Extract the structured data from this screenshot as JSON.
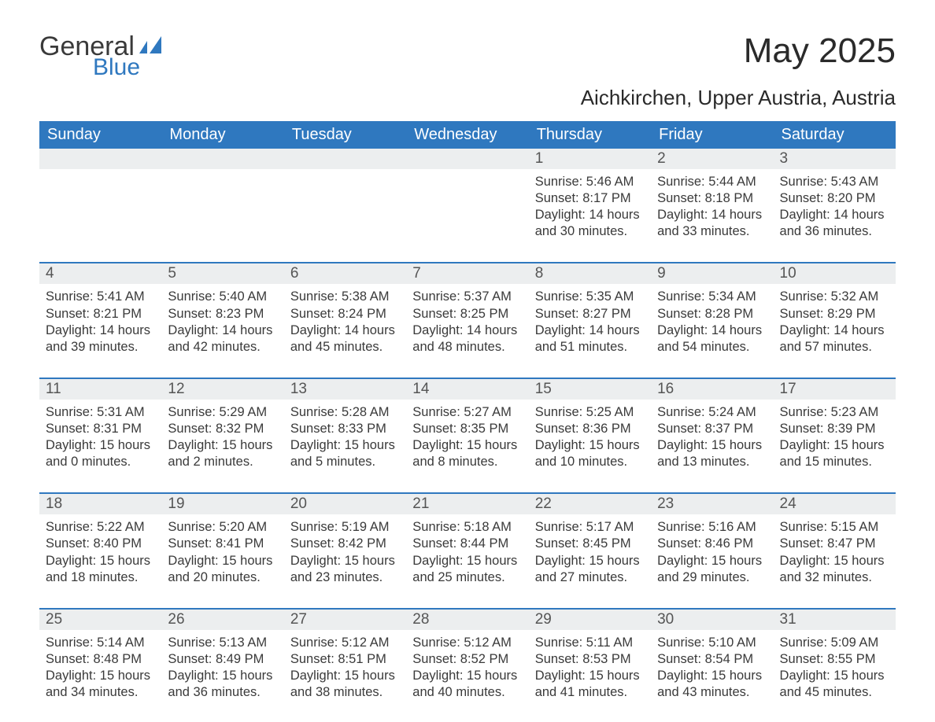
{
  "brand": {
    "part1": "General",
    "part2": "Blue",
    "color_primary": "#2f78bf",
    "color_text": "#3a3a3a"
  },
  "title": "May 2025",
  "location": "Aichkirchen, Upper Austria, Austria",
  "style": {
    "header_bg": "#2f78bf",
    "header_fg": "#ffffff",
    "daynum_bg": "#eceeef",
    "row_border": "#2f78bf",
    "body_bg": "#ffffff",
    "font_family": "Arial",
    "title_fontsize": 44,
    "location_fontsize": 26,
    "weekday_fontsize": 20,
    "daynum_fontsize": 19,
    "cell_fontsize": 16.5
  },
  "weekdays": [
    "Sunday",
    "Monday",
    "Tuesday",
    "Wednesday",
    "Thursday",
    "Friday",
    "Saturday"
  ],
  "weeks": [
    [
      null,
      null,
      null,
      null,
      {
        "n": "1",
        "sunrise": "5:46 AM",
        "sunset": "8:17 PM",
        "daylight": "14 hours and 30 minutes."
      },
      {
        "n": "2",
        "sunrise": "5:44 AM",
        "sunset": "8:18 PM",
        "daylight": "14 hours and 33 minutes."
      },
      {
        "n": "3",
        "sunrise": "5:43 AM",
        "sunset": "8:20 PM",
        "daylight": "14 hours and 36 minutes."
      }
    ],
    [
      {
        "n": "4",
        "sunrise": "5:41 AM",
        "sunset": "8:21 PM",
        "daylight": "14 hours and 39 minutes."
      },
      {
        "n": "5",
        "sunrise": "5:40 AM",
        "sunset": "8:23 PM",
        "daylight": "14 hours and 42 minutes."
      },
      {
        "n": "6",
        "sunrise": "5:38 AM",
        "sunset": "8:24 PM",
        "daylight": "14 hours and 45 minutes."
      },
      {
        "n": "7",
        "sunrise": "5:37 AM",
        "sunset": "8:25 PM",
        "daylight": "14 hours and 48 minutes."
      },
      {
        "n": "8",
        "sunrise": "5:35 AM",
        "sunset": "8:27 PM",
        "daylight": "14 hours and 51 minutes."
      },
      {
        "n": "9",
        "sunrise": "5:34 AM",
        "sunset": "8:28 PM",
        "daylight": "14 hours and 54 minutes."
      },
      {
        "n": "10",
        "sunrise": "5:32 AM",
        "sunset": "8:29 PM",
        "daylight": "14 hours and 57 minutes."
      }
    ],
    [
      {
        "n": "11",
        "sunrise": "5:31 AM",
        "sunset": "8:31 PM",
        "daylight": "15 hours and 0 minutes."
      },
      {
        "n": "12",
        "sunrise": "5:29 AM",
        "sunset": "8:32 PM",
        "daylight": "15 hours and 2 minutes."
      },
      {
        "n": "13",
        "sunrise": "5:28 AM",
        "sunset": "8:33 PM",
        "daylight": "15 hours and 5 minutes."
      },
      {
        "n": "14",
        "sunrise": "5:27 AM",
        "sunset": "8:35 PM",
        "daylight": "15 hours and 8 minutes."
      },
      {
        "n": "15",
        "sunrise": "5:25 AM",
        "sunset": "8:36 PM",
        "daylight": "15 hours and 10 minutes."
      },
      {
        "n": "16",
        "sunrise": "5:24 AM",
        "sunset": "8:37 PM",
        "daylight": "15 hours and 13 minutes."
      },
      {
        "n": "17",
        "sunrise": "5:23 AM",
        "sunset": "8:39 PM",
        "daylight": "15 hours and 15 minutes."
      }
    ],
    [
      {
        "n": "18",
        "sunrise": "5:22 AM",
        "sunset": "8:40 PM",
        "daylight": "15 hours and 18 minutes."
      },
      {
        "n": "19",
        "sunrise": "5:20 AM",
        "sunset": "8:41 PM",
        "daylight": "15 hours and 20 minutes."
      },
      {
        "n": "20",
        "sunrise": "5:19 AM",
        "sunset": "8:42 PM",
        "daylight": "15 hours and 23 minutes."
      },
      {
        "n": "21",
        "sunrise": "5:18 AM",
        "sunset": "8:44 PM",
        "daylight": "15 hours and 25 minutes."
      },
      {
        "n": "22",
        "sunrise": "5:17 AM",
        "sunset": "8:45 PM",
        "daylight": "15 hours and 27 minutes."
      },
      {
        "n": "23",
        "sunrise": "5:16 AM",
        "sunset": "8:46 PM",
        "daylight": "15 hours and 29 minutes."
      },
      {
        "n": "24",
        "sunrise": "5:15 AM",
        "sunset": "8:47 PM",
        "daylight": "15 hours and 32 minutes."
      }
    ],
    [
      {
        "n": "25",
        "sunrise": "5:14 AM",
        "sunset": "8:48 PM",
        "daylight": "15 hours and 34 minutes."
      },
      {
        "n": "26",
        "sunrise": "5:13 AM",
        "sunset": "8:49 PM",
        "daylight": "15 hours and 36 minutes."
      },
      {
        "n": "27",
        "sunrise": "5:12 AM",
        "sunset": "8:51 PM",
        "daylight": "15 hours and 38 minutes."
      },
      {
        "n": "28",
        "sunrise": "5:12 AM",
        "sunset": "8:52 PM",
        "daylight": "15 hours and 40 minutes."
      },
      {
        "n": "29",
        "sunrise": "5:11 AM",
        "sunset": "8:53 PM",
        "daylight": "15 hours and 41 minutes."
      },
      {
        "n": "30",
        "sunrise": "5:10 AM",
        "sunset": "8:54 PM",
        "daylight": "15 hours and 43 minutes."
      },
      {
        "n": "31",
        "sunrise": "5:09 AM",
        "sunset": "8:55 PM",
        "daylight": "15 hours and 45 minutes."
      }
    ]
  ],
  "labels": {
    "sunrise": "Sunrise: ",
    "sunset": "Sunset: ",
    "daylight": "Daylight: "
  }
}
